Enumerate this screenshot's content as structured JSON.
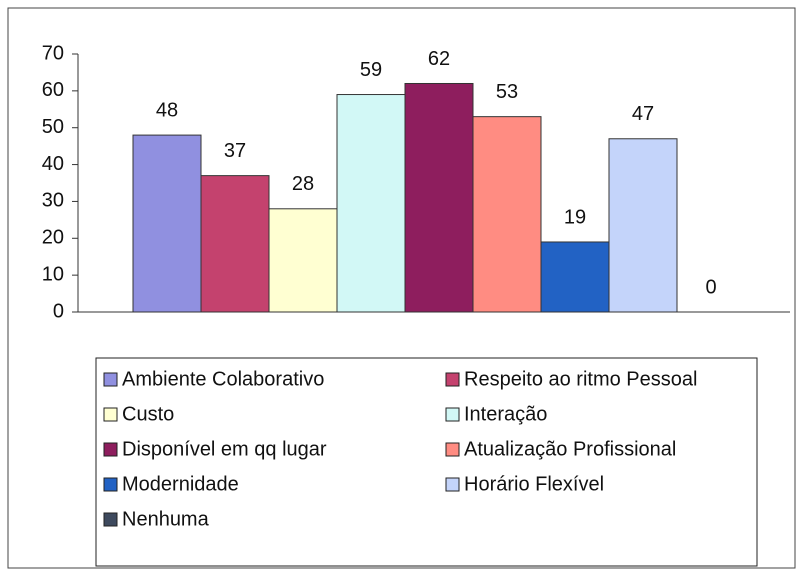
{
  "chart_data": {
    "type": "bar",
    "categories": [
      null
    ],
    "series": [
      {
        "name": "Ambiente Colaborativo",
        "color": "#9090e0",
        "values": [
          48
        ]
      },
      {
        "name": "Respeito ao ritmo Pessoal",
        "color": "#c4426e",
        "values": [
          37
        ]
      },
      {
        "name": "Custo",
        "color": "#ffffd2",
        "values": [
          28
        ]
      },
      {
        "name": "Interação",
        "color": "#d2f8f6",
        "values": [
          59
        ]
      },
      {
        "name": "Disponível em qq lugar",
        "color": "#8e1e5e",
        "values": [
          62
        ]
      },
      {
        "name": "Atualização Profissional",
        "color": "#ff8c82",
        "values": [
          53
        ]
      },
      {
        "name": "Modernidade",
        "color": "#2262c4",
        "values": [
          19
        ]
      },
      {
        "name": "Horário Flexível",
        "color": "#c4d4fa",
        "values": [
          47
        ]
      },
      {
        "name": "Nenhuma",
        "color": "#3e4a5e",
        "values": [
          0
        ]
      }
    ],
    "ylim": [
      0,
      70
    ],
    "yticks": [
      0,
      10,
      20,
      30,
      40,
      50,
      60,
      70
    ]
  }
}
